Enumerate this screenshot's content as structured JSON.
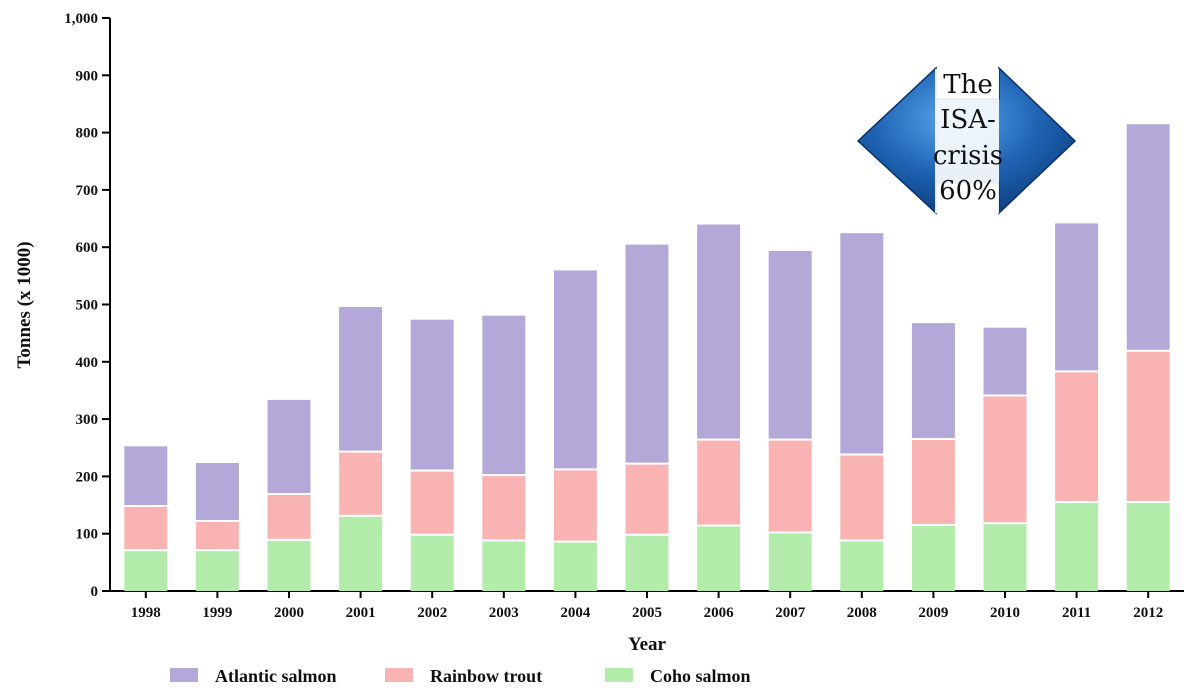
{
  "chart_data": {
    "type": "bar",
    "stacked": true,
    "categories": [
      "1998",
      "1999",
      "2000",
      "2001",
      "2002",
      "2003",
      "2004",
      "2005",
      "2006",
      "2007",
      "2008",
      "2009",
      "2010",
      "2011",
      "2012"
    ],
    "series": [
      {
        "name": "Coho salmon",
        "color": "#b3ebaa",
        "values": [
          73,
          73,
          91,
          133,
          100,
          90,
          88,
          100,
          116,
          104,
          90,
          117,
          120,
          157,
          157
        ]
      },
      {
        "name": "Rainbow trout",
        "color": "#f9b3b2",
        "values": [
          77,
          51,
          80,
          112,
          112,
          114,
          126,
          124,
          150,
          162,
          150,
          150,
          223,
          228,
          264
        ]
      },
      {
        "name": "Atlantic salmon",
        "color": "#b3a8d8",
        "values": [
          106,
          103,
          166,
          254,
          265,
          280,
          349,
          384,
          377,
          331,
          388,
          204,
          120,
          260,
          397
        ]
      }
    ],
    "xlabel": "Year",
    "ylabel": "Tonnes (x 1000)",
    "ylim": [
      0,
      1000
    ],
    "yticks": [
      "0",
      "100",
      "200",
      "300",
      "400",
      "500",
      "600",
      "700",
      "800",
      "900",
      "1,000"
    ],
    "legend_position": "bottom",
    "legend_order": [
      "Atlantic salmon",
      "Rainbow trout",
      "Coho salmon"
    ],
    "annotation": {
      "lines": [
        "The",
        "ISA-",
        "crisis",
        "60%"
      ],
      "shape": "blue-diamond-arrow",
      "color": "#1e63b3"
    }
  }
}
